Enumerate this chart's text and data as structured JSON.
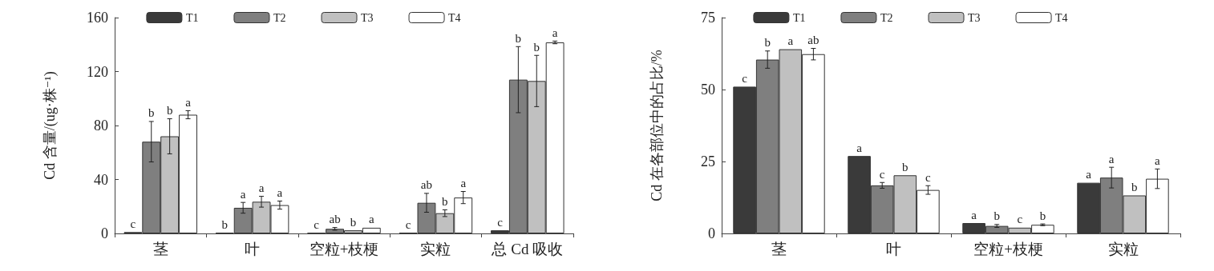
{
  "chart_data": [
    {
      "type": "bar",
      "ylabel": "Cd 含量/(ug·株⁻¹)",
      "categories": [
        "茎",
        "叶",
        "空粒+枝梗",
        "实粒",
        "总 Cd 吸收"
      ],
      "ylim": [
        0,
        160
      ],
      "yticks": [
        0,
        40,
        80,
        120,
        160
      ],
      "grid": false,
      "legend": "top",
      "series": [
        {
          "name": "T1",
          "color": "#3a3a3a",
          "values": [
            1,
            0.5,
            0.3,
            0.5,
            2.3
          ],
          "errors": [
            null,
            null,
            null,
            null,
            null
          ],
          "value_labels": [
            "c",
            "b",
            "c",
            "c",
            "c"
          ]
        },
        {
          "name": "T2",
          "color": "#7f7f7f",
          "values": [
            68,
            19,
            3.4,
            22.7,
            114
          ],
          "errors": [
            15,
            4,
            1,
            7,
            24.5
          ],
          "value_labels": [
            "b",
            "a",
            "ab",
            "ab",
            "b"
          ]
        },
        {
          "name": "T3",
          "color": "#c0c0c0",
          "values": [
            72,
            23.5,
            2.3,
            15,
            113
          ],
          "errors": [
            13,
            4,
            null,
            2.5,
            19
          ],
          "value_labels": [
            "b",
            "a",
            "b",
            "b",
            "b"
          ]
        },
        {
          "name": "T4",
          "color": "#ffffff",
          "values": [
            88,
            21,
            4.2,
            26.6,
            141.6
          ],
          "errors": [
            3,
            3,
            null,
            4.5,
            1
          ],
          "value_labels": [
            "a",
            "a",
            "a",
            "a",
            "a"
          ]
        }
      ]
    },
    {
      "type": "bar",
      "ylabel": "Cd 在各部位中的占比/%",
      "categories": [
        "茎",
        "叶",
        "空粒+枝梗",
        "实粒"
      ],
      "ylim": [
        0,
        75
      ],
      "yticks": [
        0,
        25,
        50,
        75
      ],
      "grid": false,
      "legend": "top",
      "series": [
        {
          "name": "T1",
          "color": "#3a3a3a",
          "values": [
            51,
            26.9,
            3.6,
            17.6
          ],
          "errors": [
            null,
            null,
            null,
            null
          ],
          "value_labels": [
            "c",
            "a",
            "a",
            "a"
          ]
        },
        {
          "name": "T2",
          "color": "#7f7f7f",
          "values": [
            60.4,
            16.7,
            2.6,
            19.4
          ],
          "errors": [
            3,
            1,
            0.5,
            3.6
          ],
          "value_labels": [
            "b",
            "c",
            "b",
            "a"
          ]
        },
        {
          "name": "T3",
          "color": "#c0c0c0",
          "values": [
            64,
            20.2,
            2,
            13.2
          ],
          "errors": [
            null,
            null,
            null,
            null
          ],
          "value_labels": [
            "a",
            "b",
            "c",
            "b"
          ]
        },
        {
          "name": "T4",
          "color": "#ffffff",
          "values": [
            62.3,
            15.1,
            3,
            19
          ],
          "errors": [
            2,
            1.5,
            0.3,
            3.4
          ],
          "value_labels": [
            "ab",
            "c",
            "b",
            "a"
          ]
        }
      ]
    }
  ]
}
